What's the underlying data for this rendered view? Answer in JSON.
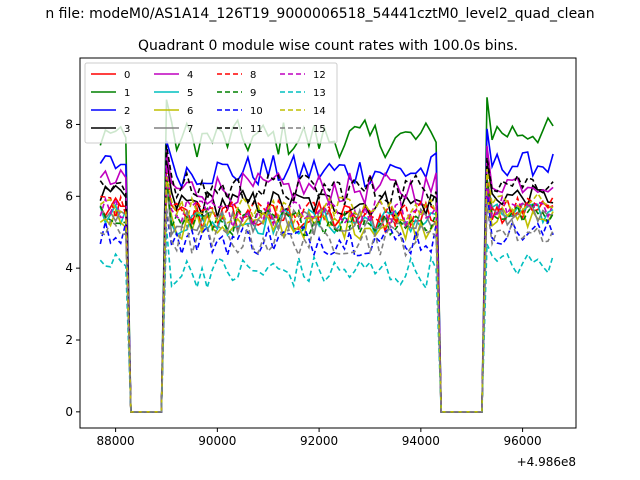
{
  "figure": {
    "suptitle": "n file: modeM0/AS1A14_126T19_9000006518_54441cztM0_level2_quad_clean"
  },
  "chart_data": {
    "type": "line",
    "title": "Quadrant 0 module wise count rates with 100.0s bins.",
    "xlabel": "",
    "ylabel": "",
    "x_offset_label": "+4.986e8",
    "x_offset": 498600000,
    "xlim": [
      87300,
      97050
    ],
    "ylim": [
      -0.45,
      9.85
    ],
    "xticks": [
      88000,
      90000,
      92000,
      94000,
      96000
    ],
    "yticks": [
      0,
      2,
      4,
      6,
      8
    ],
    "grid": false,
    "legend_position": "upper-left",
    "legend_columns": 4,
    "x_range": [
      87700,
      96600,
      100
    ],
    "gaps": [
      [
        88300,
        88900
      ],
      [
        94400,
        95200
      ]
    ],
    "series": [
      {
        "name": "0",
        "color": "#ff0000",
        "dash": "solid",
        "base": 5.6,
        "noise": 0.35
      },
      {
        "name": "1",
        "color": "#008000",
        "dash": "solid",
        "base": 7.8,
        "noise": 0.4
      },
      {
        "name": "2",
        "color": "#0000ff",
        "dash": "solid",
        "base": 6.9,
        "noise": 0.35
      },
      {
        "name": "3",
        "color": "#000000",
        "dash": "solid",
        "base": 6.0,
        "noise": 0.3
      },
      {
        "name": "4",
        "color": "#bf00bf",
        "dash": "solid",
        "base": 6.4,
        "noise": 0.35
      },
      {
        "name": "5",
        "color": "#00bfbf",
        "dash": "solid",
        "base": 5.5,
        "noise": 0.3
      },
      {
        "name": "6",
        "color": "#bfbf00",
        "dash": "solid",
        "base": 5.4,
        "noise": 0.3
      },
      {
        "name": "7",
        "color": "#808080",
        "dash": "solid",
        "base": 5.5,
        "noise": 0.3
      },
      {
        "name": "8",
        "color": "#ff0000",
        "dash": "dashed",
        "base": 5.7,
        "noise": 0.3
      },
      {
        "name": "9",
        "color": "#008000",
        "dash": "dashed",
        "base": 5.5,
        "noise": 0.3
      },
      {
        "name": "10",
        "color": "#0000ff",
        "dash": "dashed",
        "base": 5.0,
        "noise": 0.35
      },
      {
        "name": "11",
        "color": "#000000",
        "dash": "dashed",
        "base": 6.4,
        "noise": 0.35
      },
      {
        "name": "12",
        "color": "#bf00bf",
        "dash": "dashed",
        "base": 5.7,
        "noise": 0.3
      },
      {
        "name": "13",
        "color": "#00bfbf",
        "dash": "dashed",
        "base": 4.1,
        "noise": 0.35
      },
      {
        "name": "14",
        "color": "#bfbf00",
        "dash": "dashed",
        "base": 5.8,
        "noise": 0.3
      },
      {
        "name": "15",
        "color": "#808080",
        "dash": "dashed",
        "base": 5.0,
        "noise": 0.35
      }
    ]
  }
}
